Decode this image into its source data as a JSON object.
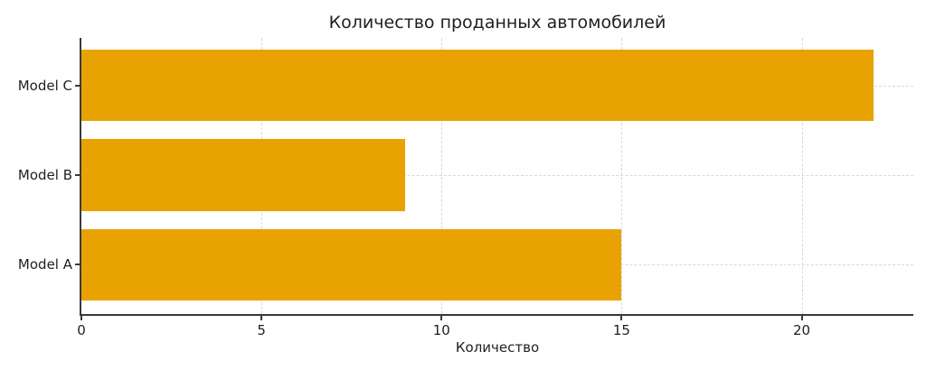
{
  "chart_data": {
    "type": "bar",
    "orientation": "horizontal",
    "title": "Количество проданных автомобилей",
    "xlabel": "Количество",
    "ylabel": "",
    "categories": [
      "Model A",
      "Model B",
      "Model C"
    ],
    "values": [
      15,
      9,
      22
    ],
    "category_order": "bottom-to-top",
    "x_ticks": [
      0,
      5,
      10,
      15,
      20
    ],
    "xlim": [
      0,
      23.1
    ],
    "ylim_units": [
      -0.55,
      2.53
    ],
    "bar_height_units": 0.8,
    "grid": true,
    "grid_style": "dashed",
    "grid_color": "#d8d8d8",
    "bar_color": "#e8a303",
    "axis_color": "#3a3a3a",
    "text_color": "#1f1f1f",
    "legend": "none",
    "spines": [
      "left",
      "bottom"
    ]
  }
}
